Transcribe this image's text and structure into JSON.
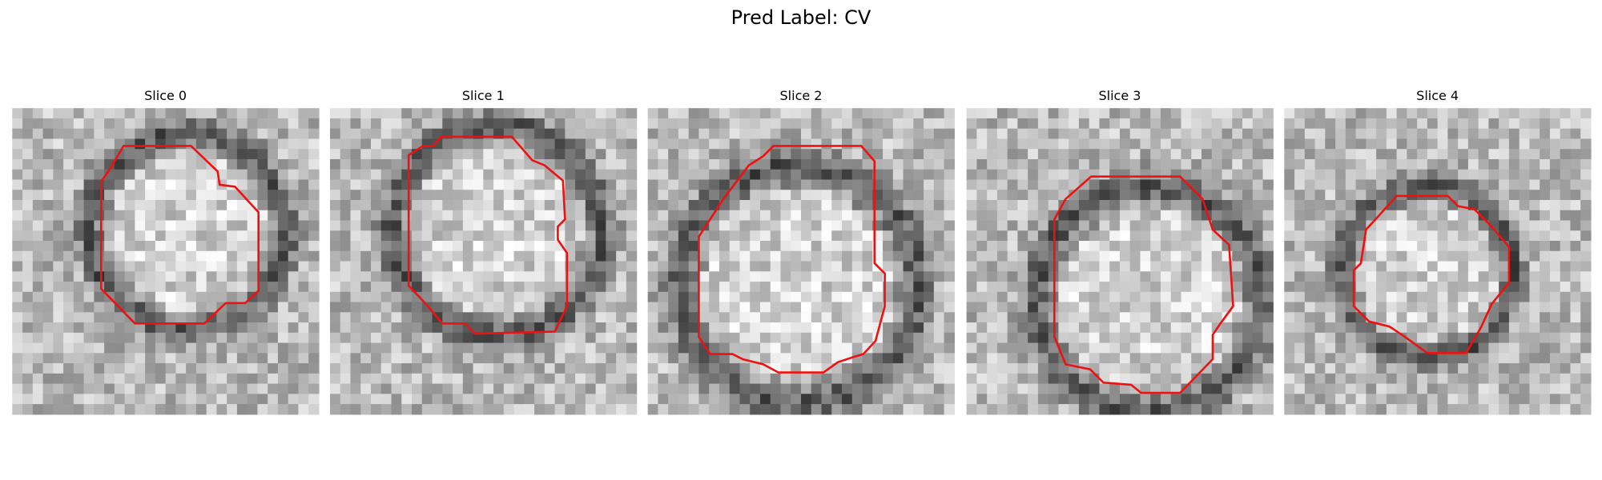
{
  "title": "Pred Label: CV",
  "panels": [
    {
      "title": "Slice 0"
    },
    {
      "title": "Slice 1"
    },
    {
      "title": "Slice 2"
    },
    {
      "title": "Slice 3"
    },
    {
      "title": "Slice 4"
    }
  ]
}
